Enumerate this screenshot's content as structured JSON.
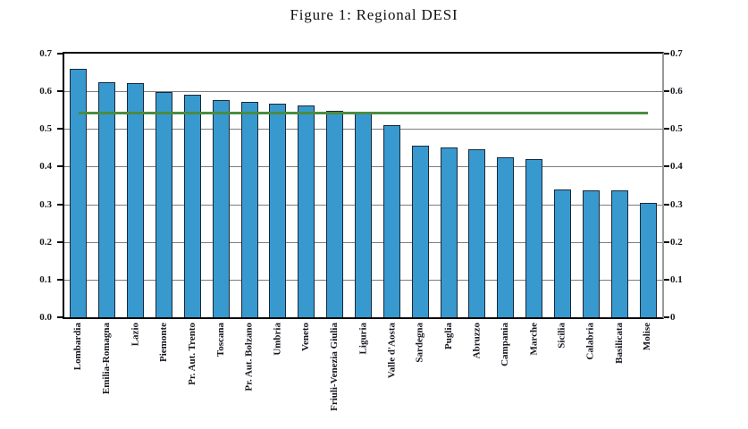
{
  "chart_data": {
    "type": "bar",
    "title": "Figure 1: Regional DESI",
    "categories": [
      "Lombardia",
      "Emilia-Romagna",
      "Lazio",
      "Piemonte",
      "Pr. Aut. Trento",
      "Toscana",
      "Pr. Aut. Bolzano",
      "Umbria",
      "Veneto",
      "Friuli-Venezia Giulia",
      "Liguria",
      "Valle d'Aosta",
      "Sardegna",
      "Puglia",
      "Abruzzo",
      "Campania",
      "Marche",
      "Sicilia",
      "Calabria",
      "Basilicata",
      "Molise"
    ],
    "values": [
      0.66,
      0.625,
      0.622,
      0.597,
      0.591,
      0.576,
      0.573,
      0.567,
      0.562,
      0.549,
      0.546,
      0.51,
      0.455,
      0.452,
      0.447,
      0.424,
      0.421,
      0.34,
      0.338,
      0.336,
      0.304
    ],
    "reference_line": {
      "name": "national-average-line",
      "value": 0.542
    },
    "ylim": [
      0,
      0.7
    ],
    "ytick_step": 0.1,
    "ytick_labels_left": [
      "0.0",
      "0.1",
      "0.2",
      "0.3",
      "0.4",
      "0.5",
      "0.6",
      "0.7"
    ],
    "ytick_labels_right": [
      "0",
      "0.1",
      "0.2",
      "0.3",
      "0.4",
      "0.5",
      "0.6",
      "0.7"
    ],
    "xlabel": "",
    "ylabel": "",
    "grid": true,
    "legend": false,
    "colors": {
      "bar_fill": "#3899ce",
      "bar_edge": "#1b2838",
      "grid_line": "#7d7d7d",
      "axis": "#000000",
      "right_axis": "#999999",
      "reference_line": "#4a8c42",
      "background": "#ffffff",
      "text": "#15181f"
    }
  }
}
